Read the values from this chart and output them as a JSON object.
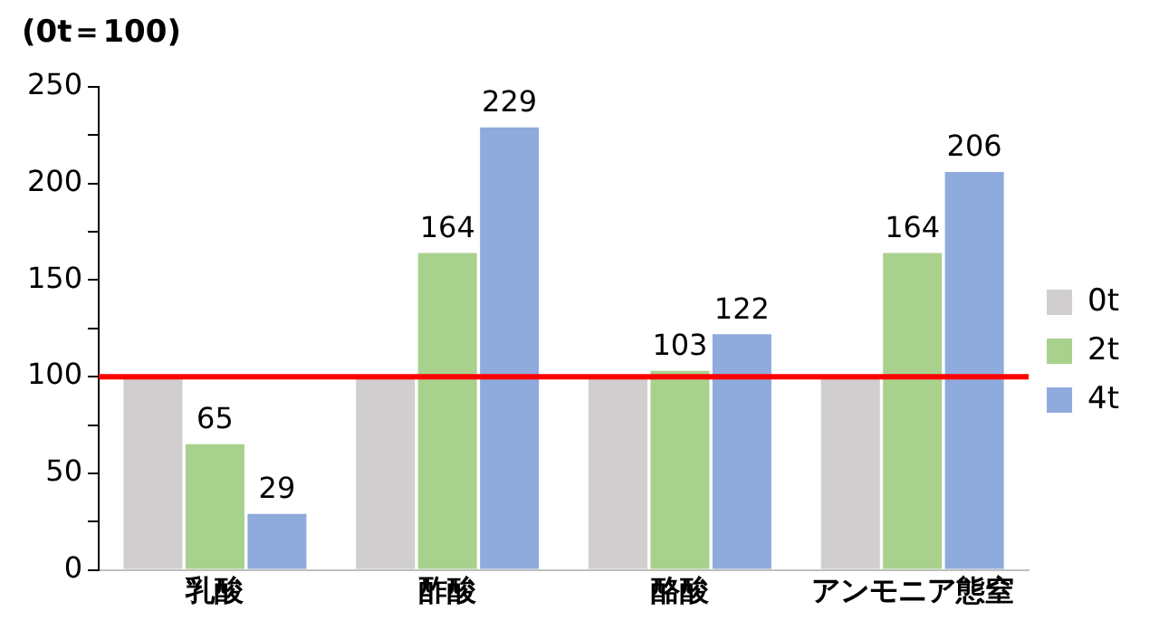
{
  "chart_data": {
    "type": "bar",
    "ylabel": "(0t＝100)",
    "categories": [
      "乳酸",
      "酢酸",
      "酪酸",
      "アンモニア態窒"
    ],
    "series": [
      {
        "name": "0t",
        "color": "#d0cece",
        "values": [
          100,
          100,
          100,
          100
        ],
        "value_labels": [
          null,
          null,
          null,
          null
        ]
      },
      {
        "name": "2t",
        "color": "#a9d18e",
        "values": [
          65,
          164,
          103,
          164
        ],
        "value_labels": [
          "65",
          "164",
          "103",
          "164"
        ]
      },
      {
        "name": "4t",
        "color": "#8faadc",
        "values": [
          29,
          229,
          122,
          206
        ],
        "value_labels": [
          "29",
          "229",
          "122",
          "206"
        ]
      }
    ],
    "ylim": [
      0,
      250
    ],
    "yticks": [
      0,
      {
        "value": 25,
        "label": null
      },
      50,
      {
        "value": 75,
        "label": null
      },
      100,
      {
        "value": 125,
        "label": null
      },
      150,
      {
        "value": 175,
        "label": null
      },
      200,
      {
        "value": 225,
        "label": null
      },
      250
    ],
    "ref_lines": [
      {
        "axis": "y",
        "value": 100,
        "color": "#ff0000"
      }
    ],
    "grid": false,
    "legend": "right"
  }
}
